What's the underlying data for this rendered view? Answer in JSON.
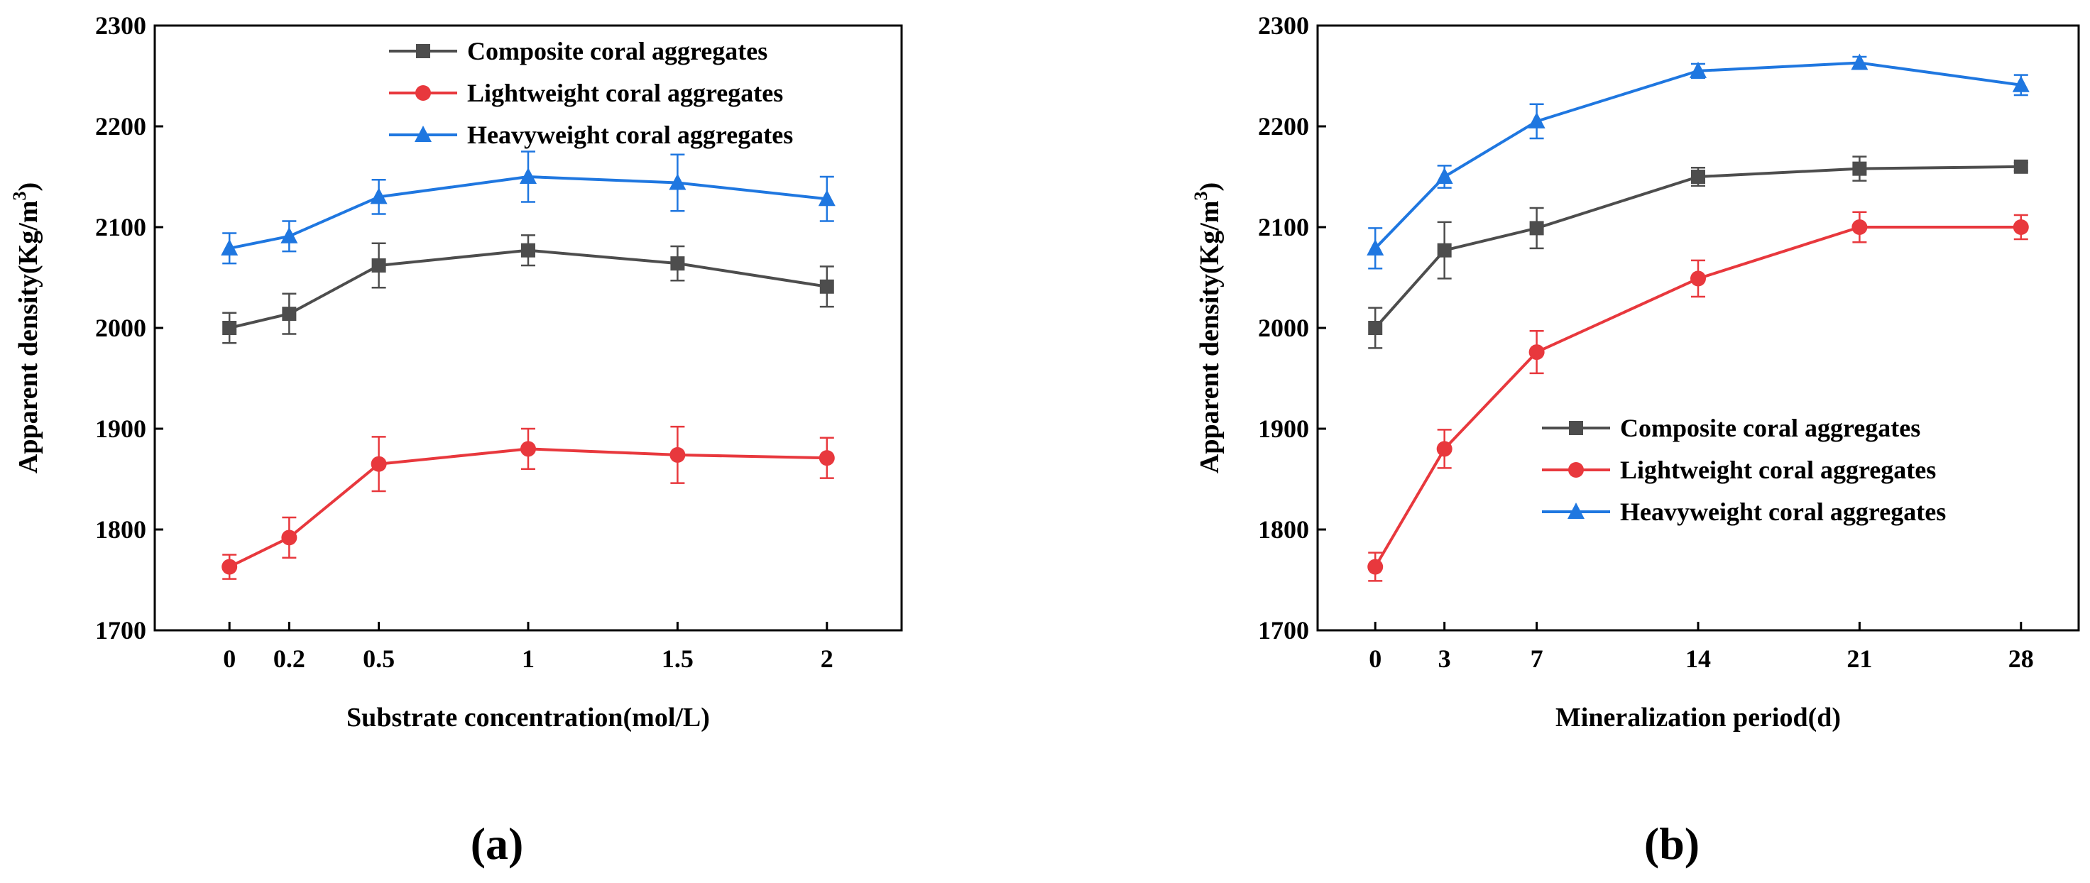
{
  "chart_data": [
    {
      "panel": "(a)",
      "type": "line",
      "xlabel": "Substrate concentration(mol/L)",
      "ylabel_main": "Apparent density(Kg/m",
      "ylabel_sup": "3",
      "ylabel_close": ")",
      "ylim": [
        1700,
        2300
      ],
      "yticks": [
        1700,
        1800,
        1900,
        2000,
        2100,
        2200,
        2300
      ],
      "x": [
        0,
        0.2,
        0.5,
        1,
        1.5,
        2
      ],
      "x_tick_labels": [
        "0",
        "0.2",
        "0.5",
        "1",
        "1.5",
        "2"
      ],
      "xlim": [
        -0.25,
        2.25
      ],
      "legend_position": "top-right",
      "series": [
        {
          "name": "Composite coral aggregates",
          "color": "#4d4d4d",
          "marker": "square",
          "values": [
            2000,
            2014,
            2062,
            2077,
            2064,
            2041
          ],
          "errors": [
            15,
            20,
            22,
            15,
            17,
            20
          ]
        },
        {
          "name": "Lightweight coral aggregates",
          "color": "#e8383d",
          "marker": "circle",
          "values": [
            1763,
            1792,
            1865,
            1880,
            1874,
            1871
          ],
          "errors": [
            12,
            20,
            27,
            20,
            28,
            20
          ]
        },
        {
          "name": "Heavyweight coral aggregates",
          "color": "#1f77e0",
          "marker": "triangle",
          "values": [
            2079,
            2091,
            2130,
            2150,
            2144,
            2128
          ],
          "errors": [
            15,
            15,
            17,
            25,
            28,
            22
          ]
        }
      ]
    },
    {
      "panel": "(b)",
      "type": "line",
      "xlabel": "Mineralization period(d)",
      "ylabel_main": "Apparent density(Kg/m",
      "ylabel_sup": "3",
      "ylabel_close": ")",
      "ylim": [
        1700,
        2300
      ],
      "yticks": [
        1700,
        1800,
        1900,
        2000,
        2100,
        2200,
        2300
      ],
      "x": [
        0,
        3,
        7,
        14,
        21,
        28
      ],
      "x_tick_labels": [
        "0",
        "3",
        "7",
        "14",
        "21",
        "28"
      ],
      "xlim": [
        -2.5,
        30.5
      ],
      "legend_position": "bottom-right",
      "series": [
        {
          "name": "Composite coral aggregates",
          "color": "#4d4d4d",
          "marker": "square",
          "values": [
            2000,
            2077,
            2099,
            2150,
            2158,
            2160
          ],
          "errors": [
            20,
            28,
            20,
            9,
            12,
            4
          ]
        },
        {
          "name": "Lightweight coral aggregates",
          "color": "#e8383d",
          "marker": "circle",
          "values": [
            1763,
            1880,
            1976,
            2049,
            2100,
            2100
          ],
          "errors": [
            14,
            19,
            21,
            18,
            15,
            12
          ]
        },
        {
          "name": "Heavyweight coral aggregates",
          "color": "#1f77e0",
          "marker": "triangle",
          "values": [
            2079,
            2150,
            2205,
            2255,
            2263,
            2241
          ],
          "errors": [
            20,
            11,
            17,
            7,
            6,
            10
          ]
        }
      ]
    }
  ]
}
